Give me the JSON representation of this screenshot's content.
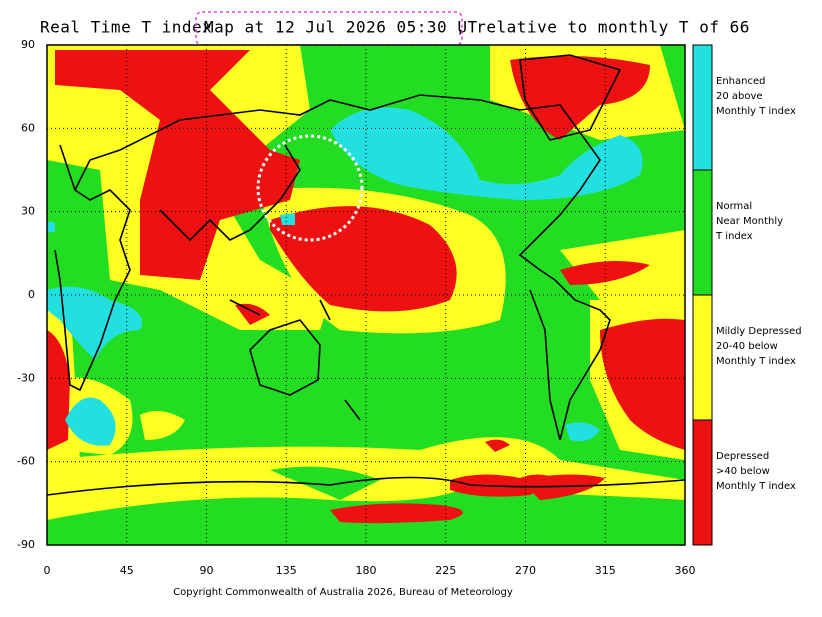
{
  "header": {
    "title_parts": [
      "Real Time T index",
      "Map at 12 Jul 2026 05:30 UT",
      ", relative to monthly T of 66"
    ]
  },
  "map": {
    "xticks": [
      0,
      45,
      90,
      135,
      180,
      225,
      270,
      315,
      360
    ],
    "xlim": [
      0,
      360
    ],
    "yticks": [
      90,
      60,
      30,
      0,
      -30,
      -60,
      -90
    ],
    "ylim": [
      -90,
      90
    ]
  },
  "legend": [
    {
      "lines": [
        "Enhanced",
        "20 above",
        "Monthly T index"
      ],
      "color": "#22e0e0"
    },
    {
      "lines": [
        "Normal",
        "Near Monthly",
        "T index"
      ],
      "color": "#22dd22"
    },
    {
      "lines": [
        "Mildly Depressed",
        "20-40 below",
        "Monthly T index"
      ],
      "color": "#ffff22"
    },
    {
      "lines": [
        "Depressed",
        ">40 below",
        "Monthly T index"
      ],
      "color": "#ee1111"
    }
  ],
  "footer": {
    "copyright": "Copyright Commonwealth of Australia 2026, Bureau of Meteorology"
  }
}
